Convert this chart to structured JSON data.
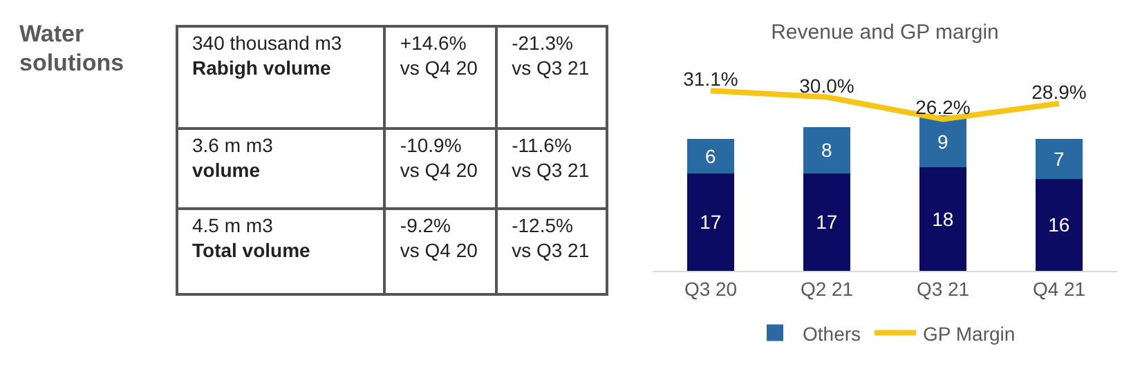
{
  "chart_data": [
    {
      "type": "other",
      "title": "Water solutions",
      "annotations": [
        "340 thousand m3",
        "Rabigh volume",
        "+14.6%",
        "vs Q4 20",
        "-21.3%",
        "vs Q3 21",
        "3.6 m m3",
        "volume",
        "-10.9%",
        "vs Q4 20",
        "-11.6%",
        "vs Q3 21",
        "4.5 m m3",
        "Total volume",
        "-9.2%",
        "vs Q4 20",
        "-12.5%",
        "vs Q3 21"
      ]
    },
    {
      "type": "bar",
      "title": "Revenue and GP margin",
      "stacked": true,
      "categories": [
        "Q3 20",
        "Q2 21",
        "Q3 21",
        "Q4 21"
      ],
      "legend": "bottom",
      "series": [
        {
          "color": "#0b0b63",
          "values": [
            17,
            17,
            18,
            16
          ],
          "value_labels": [
            "17",
            "17",
            "18",
            "16"
          ]
        },
        {
          "name": "Others",
          "color": "#2a6aa3",
          "values": [
            6,
            8,
            9,
            7
          ],
          "value_labels": [
            "6",
            "8",
            "9",
            "7"
          ]
        },
        {
          "name": "GP Margin",
          "type": "line",
          "axis": "y2",
          "color": "#f5c518",
          "values": [
            31.1,
            30.0,
            26.2,
            28.9
          ],
          "value_labels": [
            "31.1%",
            "30.0%",
            "26.2%",
            "28.9%"
          ]
        }
      ]
    }
  ]
}
